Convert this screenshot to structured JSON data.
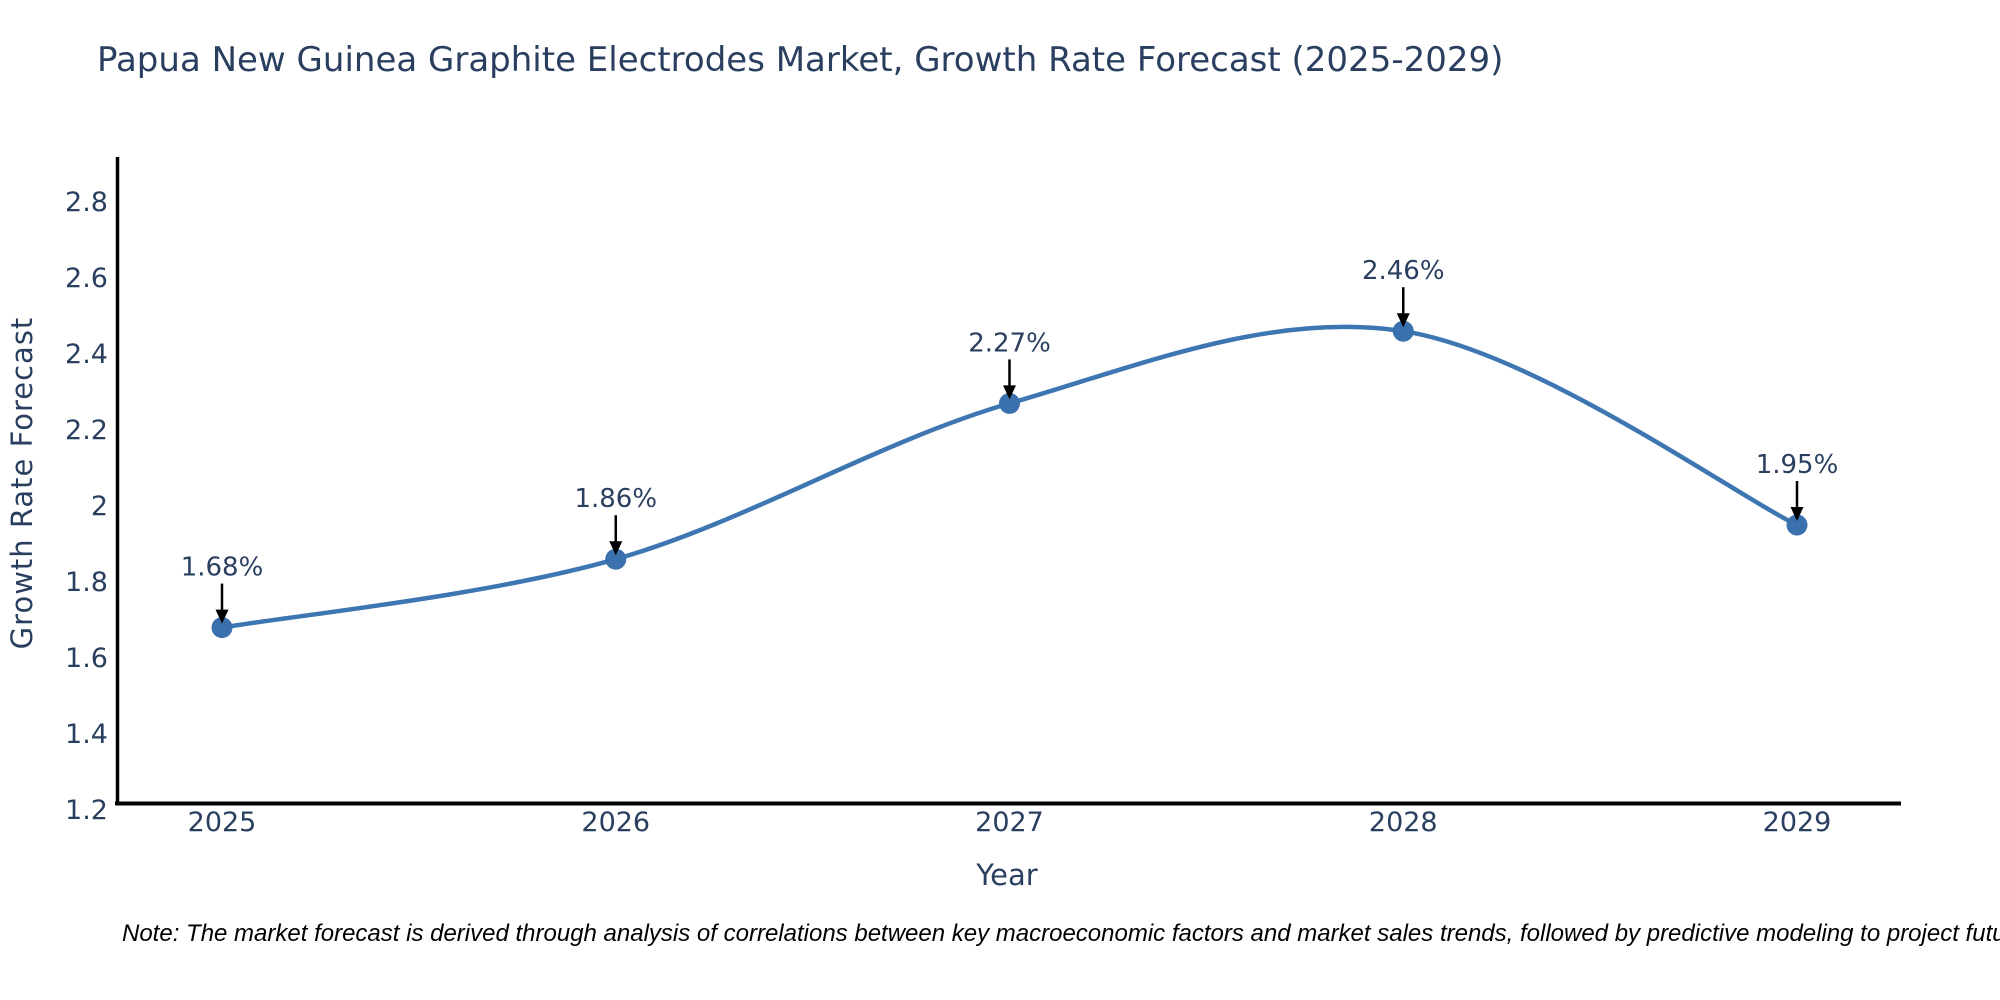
{
  "title": "Papua New Guinea Graphite Electrodes Market, Growth Rate Forecast (2025-2029)",
  "note": "Note: The market forecast is derived through analysis of correlations between key macroeconomic factors and market sales trends, followed by predictive modeling to project future sales",
  "xaxis": {
    "title": "Year",
    "tick_labels": [
      "2025",
      "2026",
      "2027",
      "2028",
      "2029"
    ]
  },
  "yaxis": {
    "title": "Growth Rate Forecast",
    "tick_labels": [
      "1.2",
      "1.4",
      "1.6",
      "1.8",
      "2",
      "2.2",
      "2.4",
      "2.6",
      "2.8"
    ]
  },
  "colors": {
    "line": "#3e76b2",
    "marker": "#3a70ad",
    "axis": "#000000",
    "text": "#2a3f5f",
    "annotation_arrow": "#000000",
    "note_text": "#000000",
    "background": "#ffffff"
  },
  "chart_data": {
    "type": "line",
    "title": "Papua New Guinea Graphite Electrodes Market, Growth Rate Forecast (2025-2029)",
    "x": [
      2025,
      2026,
      2027,
      2028,
      2029
    ],
    "values": [
      1.68,
      1.86,
      2.27,
      2.46,
      1.95
    ],
    "point_labels": [
      "1.68%",
      "1.86%",
      "2.27%",
      "2.46%",
      "1.95%"
    ],
    "xlabel": "Year",
    "ylabel": "Growth Rate Forecast",
    "ylim": [
      1.2,
      2.93
    ],
    "yticks": [
      1.2,
      1.4,
      1.6,
      1.8,
      2,
      2.2,
      2.4,
      2.6,
      2.8
    ],
    "grid": false,
    "legend": false,
    "line_shape": "spline",
    "markers": true
  }
}
